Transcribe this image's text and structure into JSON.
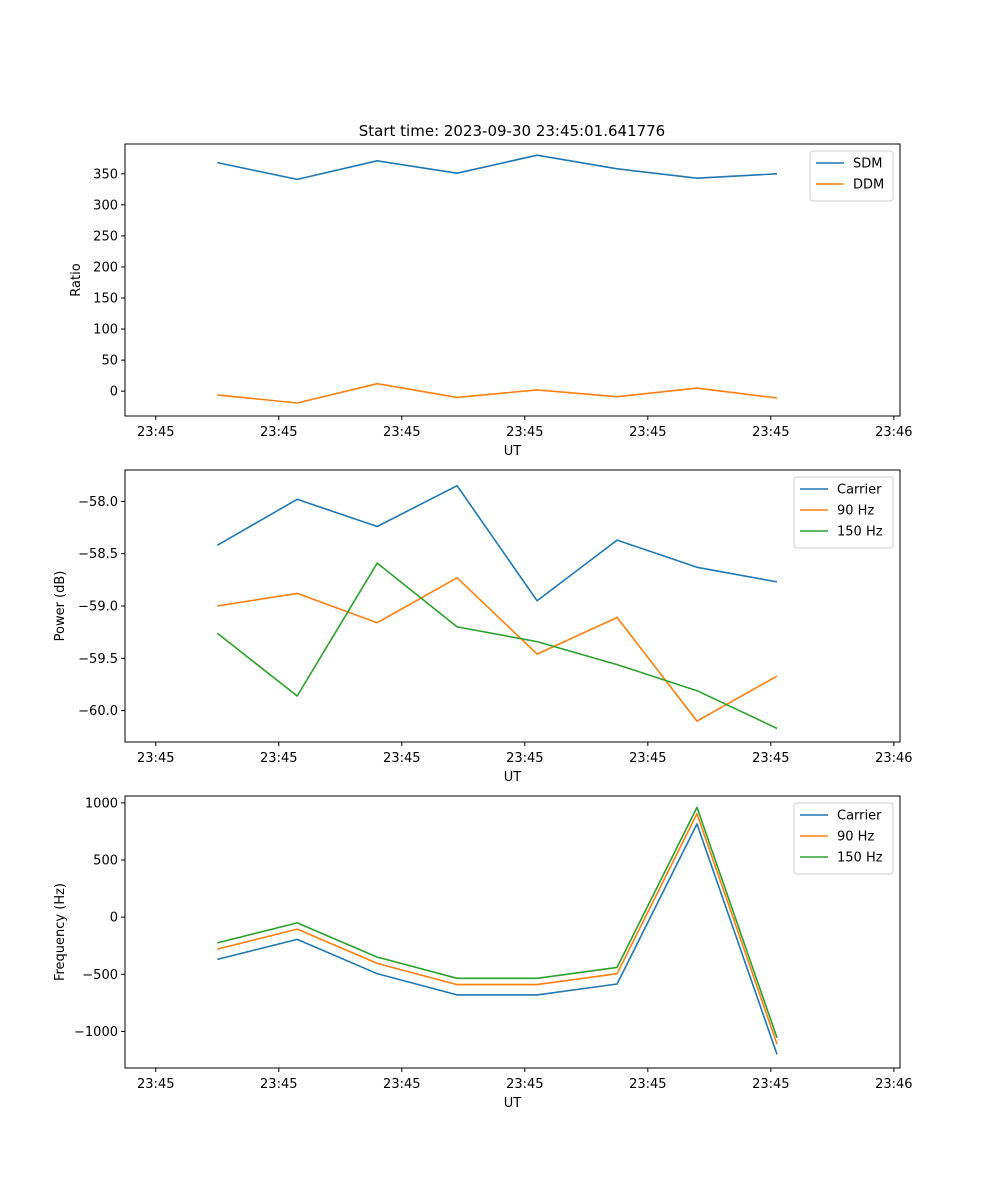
{
  "figure_title": "Start time: 2023-09-30 23:45:01.641776",
  "colors": {
    "blue": "#1f77b4",
    "orange": "#ff7f0e",
    "green": "#2ca02c"
  },
  "chart_data": [
    {
      "type": "line",
      "title": "Start time: 2023-09-30 23:45:01.641776",
      "xlabel": "UT",
      "ylabel": "Ratio",
      "xticklabels": [
        "23:45",
        "23:45",
        "23:45",
        "23:45",
        "23:45",
        "23:45",
        "23:46"
      ],
      "xlim": [
        -0.25,
        6.05
      ],
      "ylim": [
        -40,
        398
      ],
      "yticks": [
        0,
        50,
        100,
        150,
        200,
        250,
        300,
        350
      ],
      "yticklabels": [
        "0",
        "50",
        "100",
        "150",
        "200",
        "250",
        "300",
        "350"
      ],
      "x": [
        0.5,
        1.15,
        1.8,
        2.45,
        3.1,
        3.75,
        4.4,
        5.05
      ],
      "series": [
        {
          "name": "SDM",
          "color": "#1f77b4",
          "values": [
            368,
            341,
            371,
            351,
            380,
            358,
            343,
            350
          ]
        },
        {
          "name": "DDM",
          "color": "#ff7f0e",
          "values": [
            -6,
            -19,
            12,
            -10,
            2,
            -9,
            5,
            -11
          ]
        }
      ],
      "legend": "top-right"
    },
    {
      "type": "line",
      "title": "",
      "xlabel": "UT",
      "ylabel": "Power (dB)",
      "xticklabels": [
        "23:45",
        "23:45",
        "23:45",
        "23:45",
        "23:45",
        "23:45",
        "23:46"
      ],
      "xlim": [
        -0.25,
        6.05
      ],
      "ylim": [
        -60.3,
        -57.7
      ],
      "yticks": [
        -60.0,
        -59.5,
        -59.0,
        -58.5,
        -58.0
      ],
      "yticklabels": [
        "−60.0",
        "−59.5",
        "−59.0",
        "−58.5",
        "−58.0"
      ],
      "x": [
        0.5,
        1.15,
        1.8,
        2.45,
        3.1,
        3.75,
        4.4,
        5.05
      ],
      "series": [
        {
          "name": "Carrier",
          "color": "#1f77b4",
          "values": [
            -58.42,
            -57.98,
            -58.24,
            -57.85,
            -58.95,
            -58.37,
            -58.63,
            -58.77
          ]
        },
        {
          "name": "90 Hz",
          "color": "#ff7f0e",
          "values": [
            -59.0,
            -58.88,
            -59.16,
            -58.73,
            -59.46,
            -59.11,
            -60.1,
            -59.67
          ]
        },
        {
          "name": "150 Hz",
          "color": "#2ca02c",
          "values": [
            -59.26,
            -59.86,
            -58.59,
            -59.2,
            -59.34,
            -59.56,
            -59.81,
            -60.17
          ]
        }
      ],
      "legend": "top-right"
    },
    {
      "type": "line",
      "title": "",
      "xlabel": "UT",
      "ylabel": "Frequency (Hz)",
      "xticklabels": [
        "23:45",
        "23:45",
        "23:45",
        "23:45",
        "23:45",
        "23:45",
        "23:46"
      ],
      "xlim": [
        -0.25,
        6.05
      ],
      "ylim": [
        -1320,
        1060
      ],
      "yticks": [
        -1000,
        -500,
        0,
        500,
        1000
      ],
      "yticklabels": [
        "−1000",
        "−500",
        "0",
        "500",
        "1000"
      ],
      "x": [
        0.5,
        1.15,
        1.8,
        2.45,
        3.1,
        3.75,
        4.4,
        5.05
      ],
      "series": [
        {
          "name": "Carrier",
          "color": "#1f77b4",
          "values": [
            -370,
            -195,
            -495,
            -680,
            -680,
            -585,
            815,
            -1200
          ]
        },
        {
          "name": "90 Hz",
          "color": "#ff7f0e",
          "values": [
            -280,
            -105,
            -405,
            -590,
            -590,
            -495,
            905,
            -1110
          ]
        },
        {
          "name": "150 Hz",
          "color": "#2ca02c",
          "values": [
            -225,
            -50,
            -350,
            -535,
            -535,
            -440,
            960,
            -1055
          ]
        }
      ],
      "legend": "top-right"
    }
  ]
}
